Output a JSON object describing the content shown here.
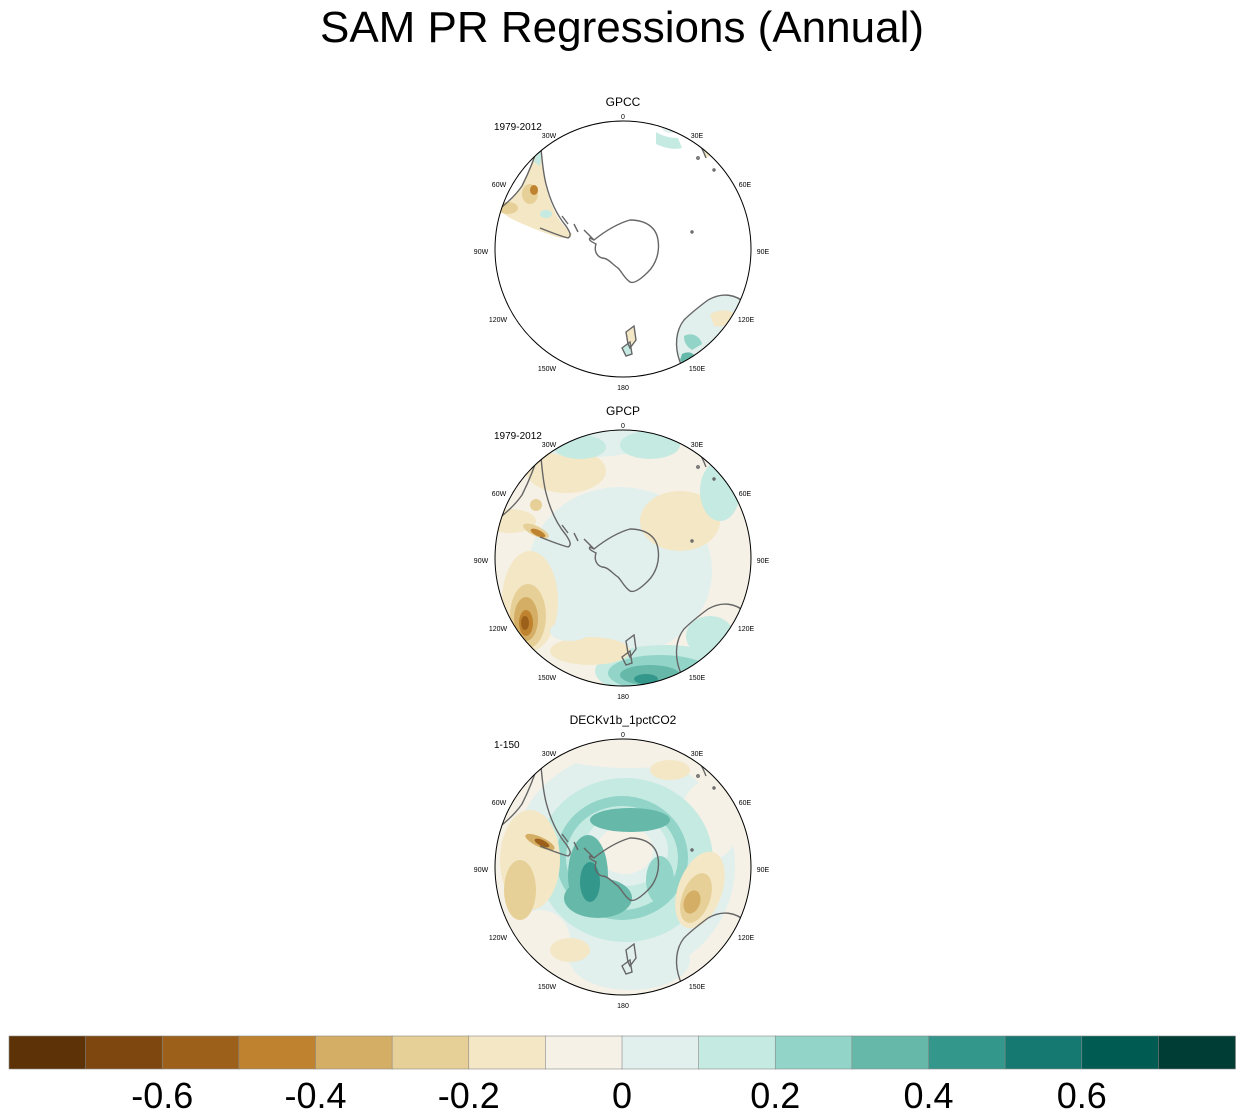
{
  "title": "SAM PR Regressions (Annual)",
  "panels": [
    {
      "name": "GPCC",
      "period": "1979-2012"
    },
    {
      "name": "GPCP",
      "period": "1979-2012"
    },
    {
      "name": "DECKv1b_1pctCO2",
      "period": "1-150"
    }
  ],
  "longitude_labels": {
    "0": "0",
    "30E": "30E",
    "60E": "60E",
    "90E": "90E",
    "120E": "120E",
    "150E": "150E",
    "180": "180",
    "150W": "150W",
    "120W": "120W",
    "90W": "90W",
    "60W": "60W",
    "30W": "30W"
  },
  "colorbar": {
    "colors": [
      "#5c3206",
      "#7d470f",
      "#9d601b",
      "#bf822f",
      "#d5ae66",
      "#e7d097",
      "#f4e7c5",
      "#f5f1e7",
      "#e1efed",
      "#c5eae2",
      "#92d4c8",
      "#66b8a9",
      "#33978c",
      "#167971",
      "#005c52",
      "#003d34"
    ],
    "tick_labels": [
      "-0.6",
      "-0.4",
      "-0.2",
      "0",
      "0.2",
      "0.4",
      "0.6"
    ],
    "tick_values": [
      -0.6,
      -0.4,
      -0.2,
      0,
      0.2,
      0.4,
      0.6
    ],
    "range": [
      -0.8,
      0.8
    ]
  }
}
